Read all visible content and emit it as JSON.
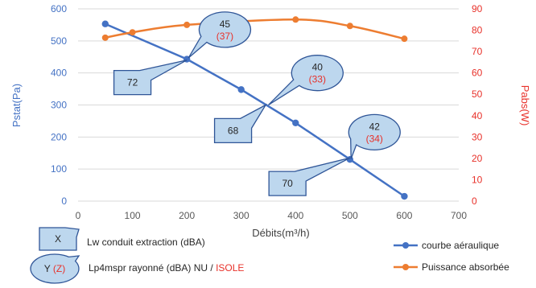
{
  "chart_data": {
    "type": "line",
    "xlabel": "Débits(m³/h)",
    "ylabel_left": "Pstat(Pa)",
    "ylabel_right": "Pabs(W)",
    "xlim": [
      0,
      700
    ],
    "xticks": [
      0,
      100,
      200,
      300,
      400,
      500,
      600,
      700
    ],
    "ylim_left": [
      0,
      600
    ],
    "yticks_left": [
      0,
      100,
      200,
      300,
      400,
      500,
      600
    ],
    "ylim_right": [
      0,
      90
    ],
    "yticks_right": [
      0,
      10,
      20,
      30,
      40,
      50,
      60,
      70,
      80,
      90
    ],
    "grid": "horizontal",
    "legend_position": "bottom-right",
    "series": [
      {
        "name": "courbe aéraulique",
        "axis": "left",
        "color": "#4472c4",
        "x": [
          50,
          200,
          300,
          400,
          500,
          600
        ],
        "y": [
          553,
          443,
          348,
          244,
          130,
          15
        ]
      },
      {
        "name": "Puissance absorbée",
        "axis": "right",
        "color": "#ed7d31",
        "x": [
          50,
          100,
          200,
          400,
          500,
          600
        ],
        "y": [
          76.5,
          79,
          82.5,
          85,
          82,
          76
        ]
      }
    ],
    "annotations": {
      "rect_callouts": [
        {
          "text": "72",
          "x": 100,
          "y": 370
        },
        {
          "text": "68",
          "x": 285,
          "y": 220
        },
        {
          "text": "70",
          "x": 385,
          "y": 55
        }
      ],
      "oval_callouts": [
        {
          "main": "45",
          "paren": "(37)",
          "x": 270,
          "y": 535
        },
        {
          "main": "40",
          "paren": "(33)",
          "x": 440,
          "y": 400
        },
        {
          "main": "42",
          "paren": "(34)",
          "x": 545,
          "y": 215
        }
      ]
    },
    "key": {
      "rect_label": "X",
      "rect_text": "Lw conduit extraction (dBA)",
      "oval_label_main": "Y",
      "oval_label_paren": "(Z)",
      "oval_text_main": "Lp4mspr rayonné (dBA) NU / ",
      "oval_text_highlight": "ISOLE"
    }
  },
  "colors": {
    "blue": "#4472c4",
    "orange": "#ed7d31",
    "red": "#e8312a",
    "callout_fill": "#bdd7ee",
    "callout_stroke": "#2f5597",
    "grid": "#d9d9d9",
    "axis_text": "#595959"
  }
}
